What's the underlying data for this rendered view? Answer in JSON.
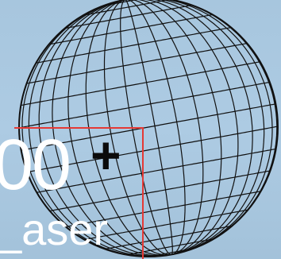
{
  "hero": {
    "count_text": "00",
    "plus_text": "+",
    "label_text": "_aser"
  },
  "colors": {
    "background": "#a9c8e0",
    "globe_lines": "#111111",
    "bracket_accent": "#e53935",
    "text": "#ffffff"
  },
  "icons": {
    "globe": "wireframe-globe-icon"
  }
}
